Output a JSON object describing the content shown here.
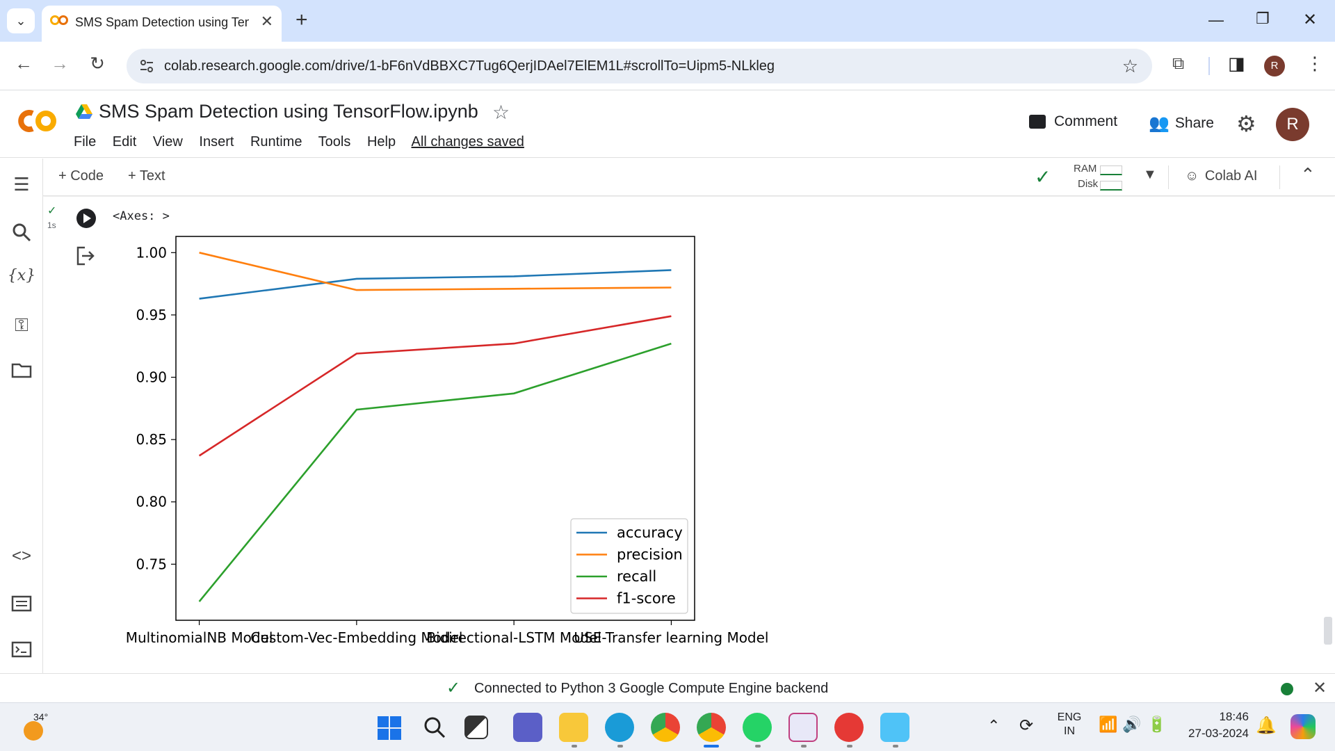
{
  "browser": {
    "tab_title": "SMS Spam Detection using TensorFlow.ipynb",
    "tab_close": "✕",
    "new_tab": "+",
    "url": "colab.research.google.com/drive/1-bF6nVdBBXC7Tug6QerjIDAel7ElEM1L#scrollTo=Uipm5-NLkleg",
    "profile_initial": "R"
  },
  "colab": {
    "logo": "CO",
    "notebook_title": "SMS Spam Detection using TensorFlow.ipynb",
    "menu": [
      "File",
      "Edit",
      "View",
      "Insert",
      "Runtime",
      "Tools",
      "Help"
    ],
    "save_status": "All changes saved",
    "comment_label": "Comment",
    "share_label": "Share",
    "avatar_initial": "R",
    "add_code": "+ Code",
    "add_text": "+ Text",
    "ram_label": "RAM",
    "disk_label": "Disk",
    "colab_ai_label": "Colab AI",
    "exec_time": "1s",
    "output_text": "<Axes: >",
    "status_message": "Connected to Python 3 Google Compute Engine backend"
  },
  "chart_data": {
    "type": "line",
    "categories": [
      "MultinomialNB Model",
      "Custom-Vec-Embedding Model",
      "Bidirectional-LSTM Model",
      "USE-Transfer learning Model"
    ],
    "series": [
      {
        "name": "accuracy",
        "color": "#1f77b4",
        "values": [
          0.963,
          0.979,
          0.981,
          0.986
        ]
      },
      {
        "name": "precision",
        "color": "#ff7f0e",
        "values": [
          1.0,
          0.97,
          0.971,
          0.972
        ]
      },
      {
        "name": "recall",
        "color": "#2ca02c",
        "values": [
          0.72,
          0.874,
          0.887,
          0.927
        ]
      },
      {
        "name": "f1-score",
        "color": "#d62728",
        "values": [
          0.837,
          0.919,
          0.927,
          0.949
        ]
      }
    ],
    "yticks": [
      "1.00",
      "0.95",
      "0.90",
      "0.85",
      "0.80",
      "0.75"
    ],
    "ylim": [
      0.705,
      1.013
    ],
    "legend_position": "lower-right",
    "grid": false
  },
  "taskbar": {
    "weather_temp": "34°",
    "language": "ENG",
    "region": "IN",
    "time": "18:46",
    "date": "27-03-2024"
  }
}
